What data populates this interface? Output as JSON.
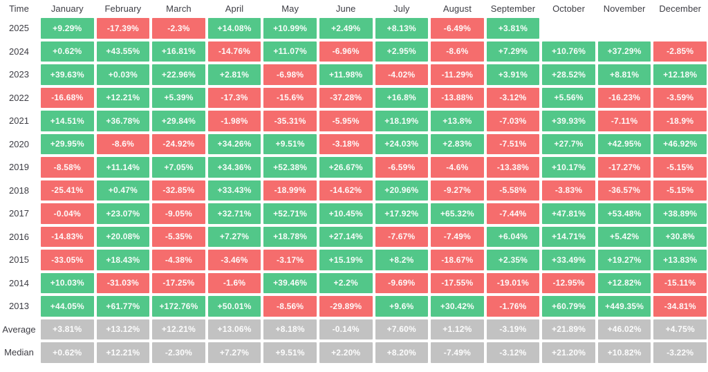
{
  "colors": {
    "positive_cell": "#52C789",
    "negative_cell": "#F56D6D",
    "summary_cell": "#C2C2C2",
    "cell_text": "#FFFFFF",
    "header_text": "#3C3C43",
    "background": "#FFFFFF"
  },
  "chart_data": {
    "type": "heatmap",
    "columns": [
      "Time",
      "January",
      "February",
      "March",
      "April",
      "May",
      "June",
      "July",
      "August",
      "September",
      "October",
      "November",
      "December"
    ],
    "rows": [
      {
        "label": "2025",
        "type": "year",
        "cells": [
          "+9.29%",
          "-17.39%",
          "-2.3%",
          "+14.08%",
          "+10.99%",
          "+2.49%",
          "+8.13%",
          "-6.49%",
          "+3.81%",
          "",
          "",
          ""
        ]
      },
      {
        "label": "2024",
        "type": "year",
        "cells": [
          "+0.62%",
          "+43.55%",
          "+16.81%",
          "-14.76%",
          "+11.07%",
          "-6.96%",
          "+2.95%",
          "-8.6%",
          "+7.29%",
          "+10.76%",
          "+37.29%",
          "-2.85%"
        ]
      },
      {
        "label": "2023",
        "type": "year",
        "cells": [
          "+39.63%",
          "+0.03%",
          "+22.96%",
          "+2.81%",
          "-6.98%",
          "+11.98%",
          "-4.02%",
          "-11.29%",
          "+3.91%",
          "+28.52%",
          "+8.81%",
          "+12.18%"
        ]
      },
      {
        "label": "2022",
        "type": "year",
        "cells": [
          "-16.68%",
          "+12.21%",
          "+5.39%",
          "-17.3%",
          "-15.6%",
          "-37.28%",
          "+16.8%",
          "-13.88%",
          "-3.12%",
          "+5.56%",
          "-16.23%",
          "-3.59%"
        ]
      },
      {
        "label": "2021",
        "type": "year",
        "cells": [
          "+14.51%",
          "+36.78%",
          "+29.84%",
          "-1.98%",
          "-35.31%",
          "-5.95%",
          "+18.19%",
          "+13.8%",
          "-7.03%",
          "+39.93%",
          "-7.11%",
          "-18.9%"
        ]
      },
      {
        "label": "2020",
        "type": "year",
        "cells": [
          "+29.95%",
          "-8.6%",
          "-24.92%",
          "+34.26%",
          "+9.51%",
          "-3.18%",
          "+24.03%",
          "+2.83%",
          "-7.51%",
          "+27.7%",
          "+42.95%",
          "+46.92%"
        ]
      },
      {
        "label": "2019",
        "type": "year",
        "cells": [
          "-8.58%",
          "+11.14%",
          "+7.05%",
          "+34.36%",
          "+52.38%",
          "+26.67%",
          "-6.59%",
          "-4.6%",
          "-13.38%",
          "+10.17%",
          "-17.27%",
          "-5.15%"
        ]
      },
      {
        "label": "2018",
        "type": "year",
        "cells": [
          "-25.41%",
          "+0.47%",
          "-32.85%",
          "+33.43%",
          "-18.99%",
          "-14.62%",
          "+20.96%",
          "-9.27%",
          "-5.58%",
          "-3.83%",
          "-36.57%",
          "-5.15%"
        ]
      },
      {
        "label": "2017",
        "type": "year",
        "cells": [
          "-0.04%",
          "+23.07%",
          "-9.05%",
          "+32.71%",
          "+52.71%",
          "+10.45%",
          "+17.92%",
          "+65.32%",
          "-7.44%",
          "+47.81%",
          "+53.48%",
          "+38.89%"
        ]
      },
      {
        "label": "2016",
        "type": "year",
        "cells": [
          "-14.83%",
          "+20.08%",
          "-5.35%",
          "+7.27%",
          "+18.78%",
          "+27.14%",
          "-7.67%",
          "-7.49%",
          "+6.04%",
          "+14.71%",
          "+5.42%",
          "+30.8%"
        ]
      },
      {
        "label": "2015",
        "type": "year",
        "cells": [
          "-33.05%",
          "+18.43%",
          "-4.38%",
          "-3.46%",
          "-3.17%",
          "+15.19%",
          "+8.2%",
          "-18.67%",
          "+2.35%",
          "+33.49%",
          "+19.27%",
          "+13.83%"
        ]
      },
      {
        "label": "2014",
        "type": "year",
        "cells": [
          "+10.03%",
          "-31.03%",
          "-17.25%",
          "-1.6%",
          "+39.46%",
          "+2.2%",
          "-9.69%",
          "-17.55%",
          "-19.01%",
          "-12.95%",
          "+12.82%",
          "-15.11%"
        ]
      },
      {
        "label": "2013",
        "type": "year",
        "cells": [
          "+44.05%",
          "+61.77%",
          "+172.76%",
          "+50.01%",
          "-8.56%",
          "-29.89%",
          "+9.6%",
          "+30.42%",
          "-1.76%",
          "+60.79%",
          "+449.35%",
          "-34.81%"
        ]
      },
      {
        "label": "Average",
        "type": "summary",
        "cells": [
          "+3.81%",
          "+13.12%",
          "+12.21%",
          "+13.06%",
          "+8.18%",
          "-0.14%",
          "+7.60%",
          "+1.12%",
          "-3.19%",
          "+21.89%",
          "+46.02%",
          "+4.75%"
        ]
      },
      {
        "label": "Median",
        "type": "summary",
        "cells": [
          "+0.62%",
          "+12.21%",
          "-2.30%",
          "+7.27%",
          "+9.51%",
          "+2.20%",
          "+8.20%",
          "-7.49%",
          "-3.12%",
          "+21.20%",
          "+10.82%",
          "-3.22%"
        ]
      }
    ]
  }
}
